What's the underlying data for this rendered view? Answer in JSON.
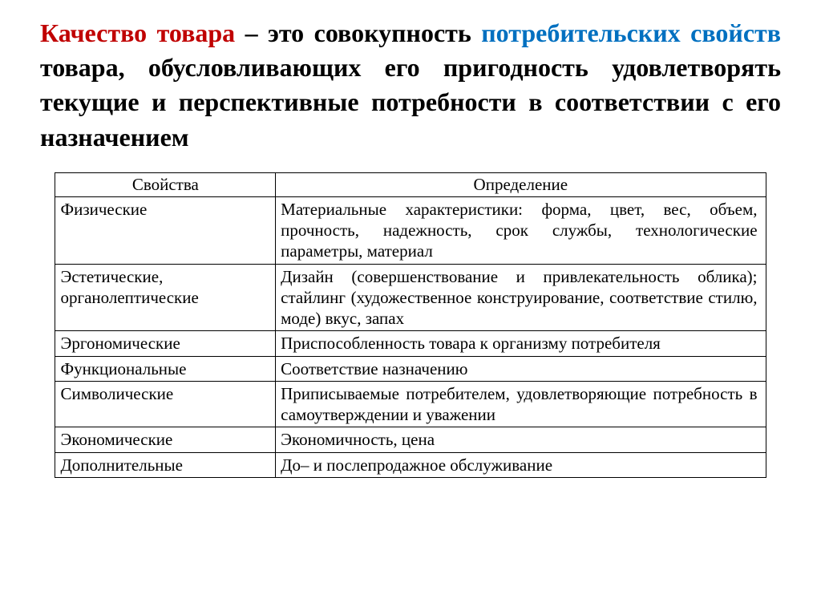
{
  "definition": {
    "part1_red": "Качество товара",
    "dash": " – ",
    "part2": "это совокупность ",
    "part3_blue": "потребительских свойств",
    "part4": " товара, обусловливающих его пригодность удовлетворять текущие и перспективные потребности в соответствии с его назначением"
  },
  "table": {
    "headers": {
      "properties": "Свойства",
      "definition": "Определение"
    },
    "rows": [
      {
        "property": "Физические",
        "definition": "Материальные характеристики: форма, цвет, вес, объем, прочность, надежность, срок службы, технологические параметры, материал"
      },
      {
        "property": "Эстетические, органолептические",
        "definition": "Дизайн (совершенствование и привлекательность облика); стайлинг (художественное конструирование, соответствие стилю, моде) вкус, запах"
      },
      {
        "property": "Эргономические",
        "definition": "Приспособленность товара к организму потребителя"
      },
      {
        "property": "Функциональные",
        "definition": "Соответствие назначению"
      },
      {
        "property": "Символические",
        "definition": "Приписываемые потребителем, удовлетворяющие потребность в самоутверждении и уважении"
      },
      {
        "property": "Экономические",
        "definition": "Экономичность, цена"
      },
      {
        "property": "Дополнительные",
        "definition": "До– и послепродажное обслуживание"
      }
    ]
  },
  "colors": {
    "red": "#c00000",
    "blue": "#0070c0",
    "black": "#000000",
    "background": "#ffffff"
  }
}
